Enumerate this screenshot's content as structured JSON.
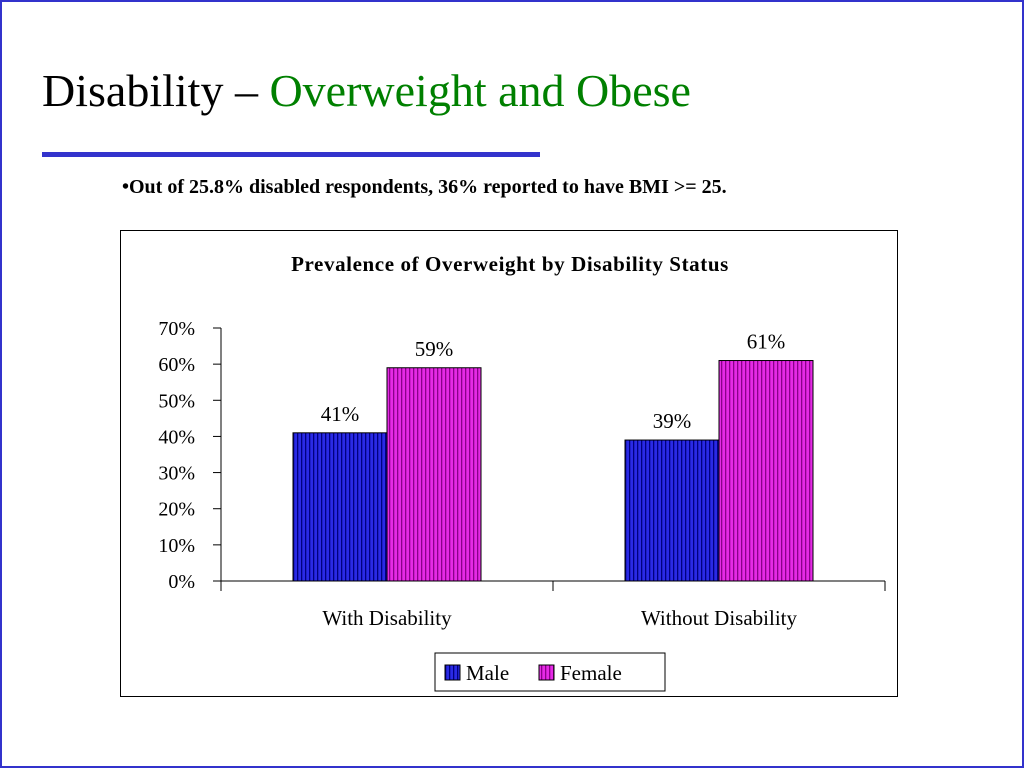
{
  "slide": {
    "title_main": "Disability – ",
    "title_accent": "Overweight and Obese",
    "bullet": "•Out of 25.8% disabled respondents, 36% reported to have BMI >= 25."
  },
  "colors": {
    "border": "#3333cc",
    "title_rule": "#3333cc",
    "title_accent": "#008000",
    "male": "#2a2ae6",
    "female": "#e62ae6"
  },
  "chart_data": {
    "type": "bar",
    "title": "Prevalence of Overweight by Disability Status",
    "categories": [
      "With Disability",
      "Without Disability"
    ],
    "series": [
      {
        "name": "Male",
        "values": [
          41,
          39
        ],
        "labels": [
          "41%",
          "39%"
        ],
        "color": "#2a2ae6"
      },
      {
        "name": "Female",
        "values": [
          59,
          61
        ],
        "labels": [
          "59%",
          "61%"
        ],
        "color": "#e62ae6"
      }
    ],
    "yticks": [
      "0%",
      "10%",
      "20%",
      "30%",
      "40%",
      "50%",
      "60%",
      "70%"
    ],
    "ylim": [
      0,
      70
    ],
    "ystep": 10,
    "grid": false,
    "legend_position": "bottom"
  }
}
